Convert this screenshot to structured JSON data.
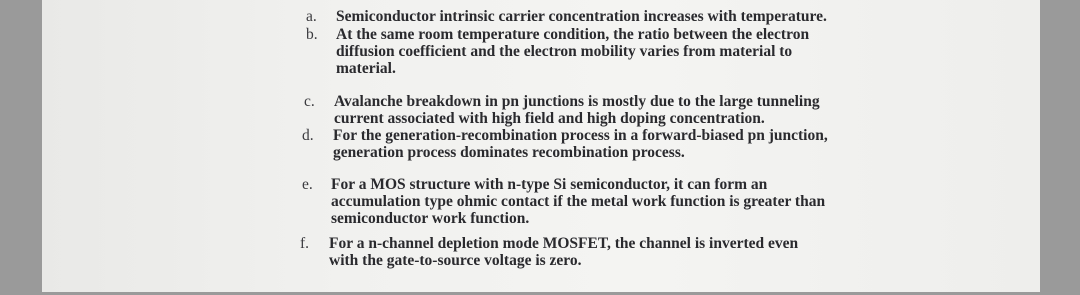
{
  "items": [
    {
      "label": "a.",
      "lines": [
        "Semiconductor intrinsic carrier concentration increases with temperature."
      ]
    },
    {
      "label": "b.",
      "lines": [
        "At the same room temperature condition, the ratio between the electron",
        "diffusion coefficient and the electron mobility varies from material to",
        "material."
      ]
    },
    {
      "label": "c.",
      "lines": [
        "Avalanche breakdown in pn junctions is mostly due to the large tunneling",
        "current associated with high field and high doping concentration."
      ]
    },
    {
      "label": "d.",
      "lines": [
        "For the generation-recombination process in a forward-biased pn junction,",
        "generation process dominates recombination process."
      ]
    },
    {
      "label": "e.",
      "lines": [
        "For a MOS structure with n-type Si semiconductor, it can form an",
        "accumulation type ohmic contact if the metal work function is greater than",
        "semiconductor work function."
      ]
    },
    {
      "label": "f.",
      "lines": [
        "For a n-channel depletion mode MOSFET, the channel is inverted even",
        "with the gate-to-source voltage is zero."
      ]
    }
  ]
}
